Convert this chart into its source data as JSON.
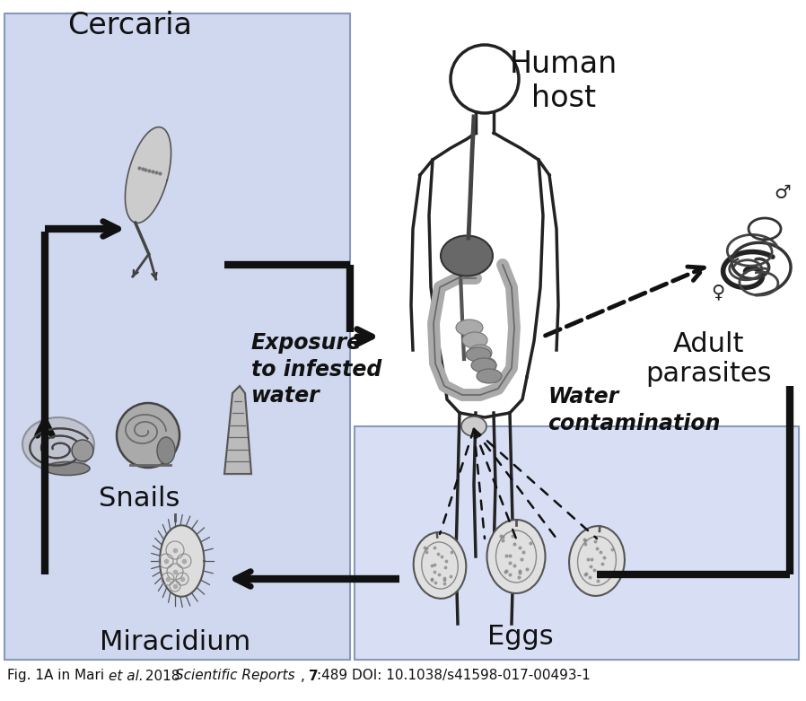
{
  "bg_blue_left": "#d0d8f0",
  "bg_blue_bottom": "#d8dff5",
  "bg_white": "#ffffff",
  "arrow_color": "#111111",
  "text_color": "#111111",
  "panel_edge": "#8899bb",
  "labels": {
    "cercaria": "Cercaria",
    "human_host": "Human\nhost",
    "adult_parasites": "Adult\nparasites",
    "snails": "Snails",
    "eggs": "Eggs",
    "miracidium": "Miracidium",
    "exposure": "Exposure\nto infested\nwater",
    "water_contamination": "Water\ncontamination"
  },
  "figsize": [
    8.98,
    7.81
  ],
  "dpi": 100
}
